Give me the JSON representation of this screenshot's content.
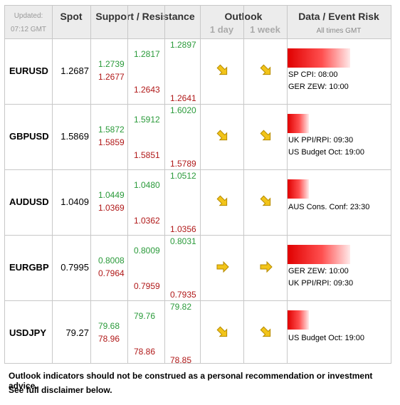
{
  "header": {
    "updated_label": "Updated:",
    "updated_time": "07:12 GMT",
    "spot": "Spot",
    "support_resistance": "Support / Resistance",
    "outlook": "Outlook",
    "outlook_1day": "1 day",
    "outlook_1week": "1 week",
    "data_event_risk": "Data / Event Risk",
    "all_times": "All times GMT"
  },
  "rows": [
    {
      "pair": "EURUSD",
      "spot": "1.2687",
      "s1": "1.2739",
      "r1": "1.2677",
      "s2": "1.2817",
      "r2": "1.2643",
      "s3": "1.2897",
      "r3": "1.2641",
      "outlook_1day": "down-right",
      "outlook_1week": "down-right",
      "event_risk_level": 0.88,
      "events": [
        "SP CPI: 08:00",
        "GER ZEW: 10:00"
      ]
    },
    {
      "pair": "GBPUSD",
      "spot": "1.5869",
      "s1": "1.5872",
      "r1": "1.5859",
      "s2": "1.5912",
      "r2": "1.5851",
      "s3": "1.6020",
      "r3": "1.5789",
      "outlook_1day": "down-right",
      "outlook_1week": "down-right",
      "event_risk_level": 0.3,
      "events": [
        "UK PPI/RPI: 09:30",
        "US Budget Oct: 19:00"
      ]
    },
    {
      "pair": "AUDUSD",
      "spot": "1.0409",
      "s1": "1.0449",
      "r1": "1.0369",
      "s2": "1.0480",
      "r2": "1.0362",
      "s3": "1.0512",
      "r3": "1.0356",
      "outlook_1day": "down-right",
      "outlook_1week": "down-right",
      "event_risk_level": 0.3,
      "events": [
        "AUS Cons. Conf: 23:30"
      ]
    },
    {
      "pair": "EURGBP",
      "spot": "0.7995",
      "s1": "0.8008",
      "r1": "0.7964",
      "s2": "0.8009",
      "r2": "0.7959",
      "s3": "0.8031",
      "r3": "0.7935",
      "outlook_1day": "right",
      "outlook_1week": "right",
      "event_risk_level": 0.88,
      "events": [
        "GER ZEW: 10:00",
        "UK PPI/RPI: 09:30"
      ]
    },
    {
      "pair": "USDJPY",
      "spot": "79.27",
      "s1": "79.68",
      "r1": "78.96",
      "s2": "79.76",
      "r2": "78.86",
      "s3": "79.82",
      "r3": "78.85",
      "outlook_1day": "down-right",
      "outlook_1week": "down-right",
      "event_risk_level": 0.3,
      "events": [
        "US Budget Oct: 19:00"
      ]
    }
  ],
  "footer": {
    "line1": "Outlook indicators should not be construed as a personal recommendation or investment advice.",
    "line2": "See full disclaimer below."
  },
  "colors": {
    "support": "#2a9a3a",
    "resistance": "#b01818",
    "arrow": "#f2c419",
    "risk_bar": "#e00000"
  }
}
